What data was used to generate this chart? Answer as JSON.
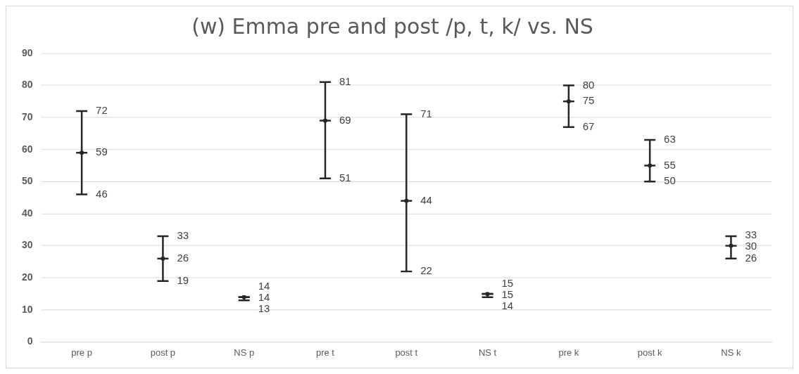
{
  "chart_data": {
    "type": "scatter",
    "title": "(w) Emma pre and post /p, t, k/ vs. NS",
    "categories": [
      "pre p",
      "post p",
      "NS p",
      "pre t",
      "post t",
      "NS t",
      "pre k",
      "post k",
      "NS k"
    ],
    "values": [
      59,
      26,
      14,
      69,
      44,
      15,
      75,
      55,
      30
    ],
    "errors": [
      [
        46,
        72
      ],
      [
        19,
        33
      ],
      [
        13,
        14
      ],
      [
        51,
        81
      ],
      [
        22,
        71
      ],
      [
        14,
        15
      ],
      [
        67,
        80
      ],
      [
        50,
        63
      ],
      [
        26,
        33
      ]
    ],
    "color": "#262626",
    "data_labels": true,
    "annotations": [
      {
        "text": "72",
        "x": "pre p",
        "y": 72
      },
      {
        "text": "46",
        "x": "pre p",
        "y": 46
      },
      {
        "text": "33",
        "x": "post p",
        "y": 33
      },
      {
        "text": "19",
        "x": "post p",
        "y": 19
      },
      {
        "text": "14",
        "x": "NS p",
        "y": 14
      },
      {
        "text": "13",
        "x": "NS p",
        "y": 13
      },
      {
        "text": "81",
        "x": "pre t",
        "y": 81
      },
      {
        "text": "51",
        "x": "pre t",
        "y": 51
      },
      {
        "text": "71",
        "x": "post t",
        "y": 71
      },
      {
        "text": "22",
        "x": "post t",
        "y": 22
      },
      {
        "text": "15",
        "x": "NS t",
        "y": 15
      },
      {
        "text": "14",
        "x": "NS t",
        "y": 14
      },
      {
        "text": "80",
        "x": "pre k",
        "y": 80
      },
      {
        "text": "67",
        "x": "pre k",
        "y": 67
      },
      {
        "text": "63",
        "x": "post k",
        "y": 63
      },
      {
        "text": "50",
        "x": "post k",
        "y": 50
      },
      {
        "text": "33",
        "x": "NS k",
        "y": 33
      },
      {
        "text": "26",
        "x": "NS k",
        "y": 26
      }
    ],
    "ylim": [
      0,
      90
    ],
    "yticks": [
      0,
      10,
      20,
      30,
      40,
      50,
      60,
      70,
      80,
      90
    ],
    "grid": "y",
    "legend": false
  }
}
